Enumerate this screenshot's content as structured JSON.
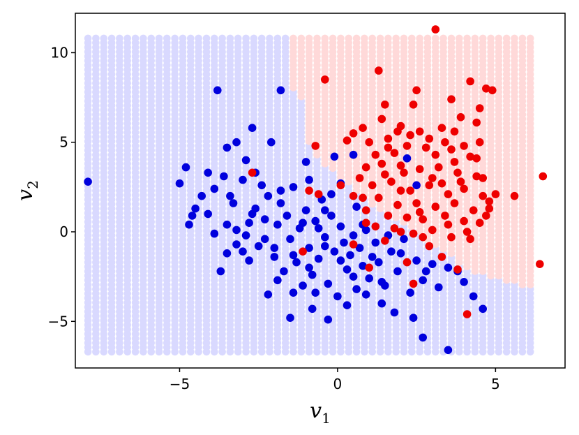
{
  "chart_data": {
    "type": "scatter",
    "xlabel": "v",
    "xlabel_sub": "1",
    "ylabel": "v",
    "ylabel_sub": "2",
    "xlim": [
      -8.3,
      7.2
    ],
    "ylim": [
      -7.6,
      12.2
    ],
    "xticks": [
      -5,
      0,
      5
    ],
    "yticks": [
      -5,
      0,
      5,
      10
    ],
    "xtick_labels": [
      "−5",
      "0",
      "5"
    ],
    "ytick_labels": [
      "−5",
      "0",
      "5",
      "10"
    ],
    "grid": false,
    "background_grid": {
      "x_range": [
        -7.9,
        6.3
      ],
      "y_range": [
        -6.7,
        11.0
      ],
      "step": 0.25,
      "class_a_color": "#d9d9ff",
      "class_b_color": "#ffd9d9",
      "boundary": [
        [
          -1.6,
          11.0
        ],
        [
          -1.6,
          8.2
        ],
        [
          -1.0,
          7.0
        ],
        [
          -0.9,
          5.0
        ],
        [
          -0.6,
          4.0
        ],
        [
          0.0,
          3.2
        ],
        [
          1.0,
          1.6
        ],
        [
          2.0,
          0.6
        ],
        [
          2.8,
          -0.4
        ],
        [
          3.6,
          -1.4
        ],
        [
          4.3,
          -2.3
        ],
        [
          5.6,
          -2.9
        ],
        [
          6.3,
          -3.2
        ]
      ]
    },
    "series": [
      {
        "color": "#0000dd",
        "points": [
          [
            -7.9,
            2.8
          ],
          [
            -3.8,
            7.9
          ],
          [
            -1.8,
            7.9
          ],
          [
            -5.0,
            2.7
          ],
          [
            -4.8,
            3.6
          ],
          [
            -4.5,
            1.3
          ],
          [
            -4.6,
            0.9
          ],
          [
            -4.3,
            2.0
          ],
          [
            -4.1,
            1.0
          ],
          [
            -3.9,
            2.4
          ],
          [
            -3.6,
            3.1
          ],
          [
            -3.5,
            0.4
          ],
          [
            -3.3,
            1.6
          ],
          [
            -3.2,
            0.1
          ],
          [
            -3.0,
            2.9
          ],
          [
            -2.9,
            -0.2
          ],
          [
            -2.7,
            1.0
          ],
          [
            -2.6,
            3.3
          ],
          [
            -2.5,
            -0.8
          ],
          [
            -2.3,
            0.7
          ],
          [
            -2.2,
            2.0
          ],
          [
            -2.0,
            -1.4
          ],
          [
            -1.9,
            0.4
          ],
          [
            -1.8,
            1.6
          ],
          [
            -1.7,
            -2.2
          ],
          [
            -1.6,
            0.9
          ],
          [
            -1.5,
            -0.4
          ],
          [
            -1.4,
            2.5
          ],
          [
            -1.3,
            -1.7
          ],
          [
            -1.2,
            0.2
          ],
          [
            -1.1,
            -3.0
          ],
          [
            -1.0,
            1.2
          ],
          [
            -0.9,
            -0.9
          ],
          [
            -0.8,
            -2.4
          ],
          [
            -0.7,
            0.6
          ],
          [
            -0.6,
            -1.5
          ],
          [
            -0.5,
            1.8
          ],
          [
            -0.4,
            -0.3
          ],
          [
            -0.3,
            -2.9
          ],
          [
            -0.2,
            0.9
          ],
          [
            -0.1,
            -1.1
          ],
          [
            0.0,
            -3.6
          ],
          [
            0.1,
            0.3
          ],
          [
            0.2,
            -0.6
          ],
          [
            0.3,
            -2.1
          ],
          [
            0.4,
            -1.3
          ],
          [
            0.5,
            -0.2
          ],
          [
            0.6,
            -3.2
          ],
          [
            0.7,
            -0.9
          ],
          [
            0.8,
            -1.9
          ],
          [
            0.9,
            0.1
          ],
          [
            1.0,
            -2.6
          ],
          [
            1.2,
            -0.6
          ],
          [
            1.3,
            -1.7
          ],
          [
            1.5,
            -3.0
          ],
          [
            1.7,
            -1.1
          ],
          [
            1.9,
            -2.2
          ],
          [
            2.1,
            -0.4
          ],
          [
            2.3,
            -3.4
          ],
          [
            2.5,
            -1.6
          ],
          [
            2.7,
            -2.7
          ],
          [
            3.0,
            -1.8
          ],
          [
            3.2,
            -3.1
          ],
          [
            3.5,
            -2.0
          ],
          [
            4.0,
            -2.8
          ],
          [
            4.6,
            -4.3
          ],
          [
            2.4,
            -4.8
          ],
          [
            2.7,
            -5.9
          ],
          [
            3.5,
            -6.6
          ],
          [
            -0.3,
            -4.9
          ],
          [
            -1.5,
            -4.8
          ],
          [
            -2.2,
            -3.5
          ],
          [
            -3.7,
            -2.2
          ],
          [
            -3.5,
            -1.2
          ],
          [
            -3.2,
            -0.7
          ],
          [
            -2.8,
            -1.6
          ],
          [
            -2.0,
            -0.9
          ],
          [
            -1.4,
            -3.4
          ],
          [
            0.3,
            -4.1
          ],
          [
            1.4,
            -4.0
          ],
          [
            1.8,
            -4.5
          ],
          [
            -0.8,
            -4.3
          ],
          [
            -0.1,
            4.2
          ],
          [
            0.5,
            4.3
          ],
          [
            0.1,
            2.7
          ],
          [
            2.2,
            4.1
          ],
          [
            2.5,
            2.6
          ],
          [
            -2.1,
            5.0
          ],
          [
            -3.2,
            5.0
          ],
          [
            -2.7,
            5.8
          ],
          [
            -3.5,
            4.7
          ],
          [
            -2.9,
            4.0
          ],
          [
            -1.0,
            3.9
          ],
          [
            -0.9,
            2.9
          ],
          [
            -2.4,
            2.6
          ],
          [
            -4.1,
            3.3
          ],
          [
            -3.4,
            2.0
          ],
          [
            -4.7,
            0.4
          ],
          [
            -3.9,
            -0.1
          ],
          [
            -2.6,
            1.3
          ],
          [
            -1.8,
            2.3
          ],
          [
            -0.2,
            2.1
          ],
          [
            0.6,
            1.4
          ],
          [
            -0.6,
            0.2
          ],
          [
            -2.3,
            -0.4
          ],
          [
            -1.4,
            -1.3
          ],
          [
            -0.9,
            -2.0
          ],
          [
            0.1,
            -1.6
          ],
          [
            1.1,
            -1.4
          ],
          [
            0.9,
            -3.5
          ],
          [
            2.0,
            -1.2
          ],
          [
            1.4,
            -2.8
          ],
          [
            2.8,
            -2.2
          ],
          [
            -0.4,
            -0.8
          ],
          [
            -0.7,
            -3.4
          ],
          [
            0.5,
            -2.5
          ],
          [
            -1.9,
            -2.7
          ],
          [
            -2.8,
            0.5
          ],
          [
            -3.0,
            -1.1
          ],
          [
            -1.1,
            0.5
          ],
          [
            -0.4,
            1.2
          ],
          [
            0.8,
            0.4
          ],
          [
            1.6,
            -0.2
          ],
          [
            3.8,
            -2.2
          ],
          [
            4.3,
            -3.6
          ]
        ]
      },
      {
        "color": "#ee0000",
        "points": [
          [
            3.1,
            11.3
          ],
          [
            1.3,
            9.0
          ],
          [
            -0.4,
            8.5
          ],
          [
            3.6,
            7.4
          ],
          [
            4.2,
            8.4
          ],
          [
            4.7,
            8.0
          ],
          [
            4.9,
            7.9
          ],
          [
            2.5,
            7.9
          ],
          [
            1.5,
            7.1
          ],
          [
            2.4,
            7.1
          ],
          [
            4.5,
            6.9
          ],
          [
            3.9,
            6.4
          ],
          [
            4.4,
            6.1
          ],
          [
            1.4,
            6.3
          ],
          [
            2.0,
            5.9
          ],
          [
            2.3,
            5.4
          ],
          [
            3.3,
            5.8
          ],
          [
            3.7,
            5.6
          ],
          [
            0.5,
            5.5
          ],
          [
            0.8,
            5.8
          ],
          [
            1.9,
            5.6
          ],
          [
            2.6,
            5.6
          ],
          [
            2.9,
            5.2
          ],
          [
            3.4,
            5.0
          ],
          [
            4.0,
            4.8
          ],
          [
            4.5,
            5.0
          ],
          [
            0.3,
            5.1
          ],
          [
            1.0,
            5.0
          ],
          [
            1.6,
            5.2
          ],
          [
            2.2,
            4.8
          ],
          [
            2.8,
            4.7
          ],
          [
            -0.7,
            4.8
          ],
          [
            1.2,
            4.3
          ],
          [
            1.8,
            4.4
          ],
          [
            3.1,
            4.3
          ],
          [
            3.6,
            4.6
          ],
          [
            4.2,
            4.2
          ],
          [
            0.9,
            3.6
          ],
          [
            1.4,
            3.8
          ],
          [
            2.0,
            3.7
          ],
          [
            2.6,
            3.5
          ],
          [
            3.2,
            3.6
          ],
          [
            3.8,
            3.3
          ],
          [
            4.4,
            3.1
          ],
          [
            0.7,
            3.0
          ],
          [
            1.1,
            2.6
          ],
          [
            1.7,
            2.8
          ],
          [
            2.3,
            2.3
          ],
          [
            2.9,
            2.6
          ],
          [
            3.5,
            2.1
          ],
          [
            4.0,
            2.4
          ],
          [
            4.6,
            2.0
          ],
          [
            5.0,
            2.1
          ],
          [
            5.6,
            2.0
          ],
          [
            6.5,
            3.1
          ],
          [
            0.5,
            2.0
          ],
          [
            1.3,
            1.9
          ],
          [
            1.9,
            1.5
          ],
          [
            2.5,
            1.6
          ],
          [
            3.1,
            1.4
          ],
          [
            3.7,
            1.6
          ],
          [
            4.3,
            1.2
          ],
          [
            4.8,
            1.3
          ],
          [
            0.9,
            1.2
          ],
          [
            1.6,
            0.9
          ],
          [
            2.2,
            0.8
          ],
          [
            2.7,
            0.7
          ],
          [
            3.4,
            0.9
          ],
          [
            4.0,
            0.6
          ],
          [
            4.5,
            0.5
          ],
          [
            1.2,
            0.3
          ],
          [
            1.8,
            0.2
          ],
          [
            2.4,
            -0.1
          ],
          [
            3.0,
            0.1
          ],
          [
            3.6,
            -0.3
          ],
          [
            4.1,
            0.0
          ],
          [
            -2.7,
            3.3
          ],
          [
            -0.9,
            2.3
          ],
          [
            -0.6,
            2.1
          ],
          [
            0.1,
            2.6
          ],
          [
            -1.1,
            -1.1
          ],
          [
            0.5,
            -0.7
          ],
          [
            1.0,
            -2.0
          ],
          [
            2.2,
            -1.7
          ],
          [
            2.4,
            -2.9
          ],
          [
            3.8,
            -2.1
          ],
          [
            4.1,
            -4.6
          ],
          [
            6.4,
            -1.8
          ],
          [
            3.3,
            -1.4
          ],
          [
            2.7,
            -0.3
          ],
          [
            1.5,
            -0.5
          ],
          [
            0.9,
            0.5
          ],
          [
            4.8,
            1.7
          ],
          [
            4.6,
            3.0
          ],
          [
            3.0,
            3.0
          ],
          [
            2.0,
            2.3
          ],
          [
            1.5,
            3.2
          ],
          [
            3.9,
            2.8
          ],
          [
            3.3,
            2.7
          ],
          [
            2.6,
            1.1
          ],
          [
            4.4,
            4.1
          ],
          [
            3.7,
            3.9
          ],
          [
            2.1,
            3.3
          ],
          [
            1.6,
            4.7
          ],
          [
            0.8,
            1.9
          ],
          [
            2.9,
            -0.8
          ],
          [
            3.5,
            0.4
          ],
          [
            4.2,
            -0.4
          ],
          [
            2.0,
            0.0
          ],
          [
            4.7,
            0.9
          ]
        ]
      }
    ]
  }
}
